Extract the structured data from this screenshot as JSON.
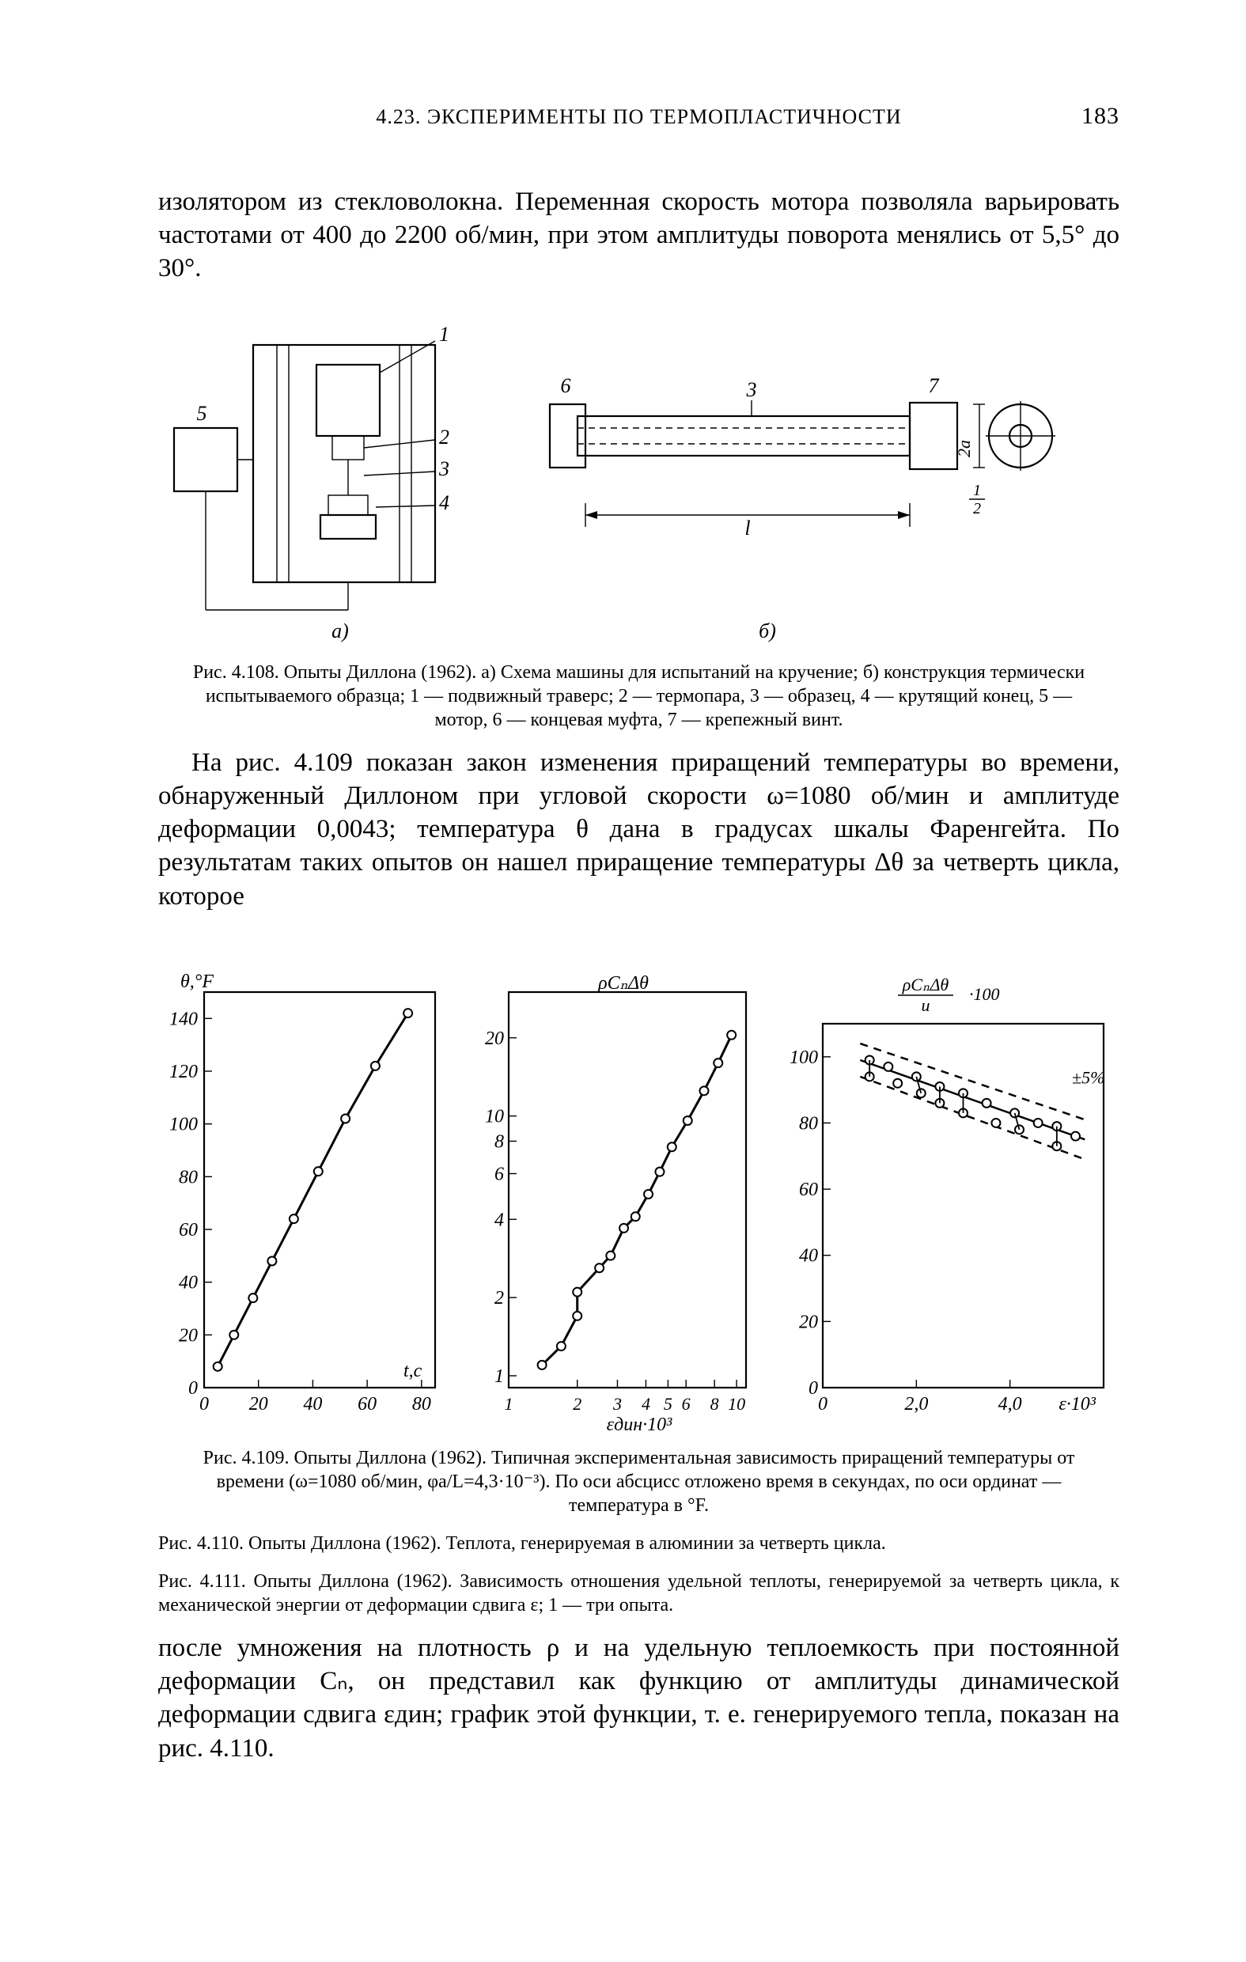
{
  "page": {
    "running_title": "4.23. ЭКСПЕРИМЕНТЫ ПО ТЕРМОПЛАСТИЧНОСТИ",
    "number": "183"
  },
  "para1": "изолятором из стекловолокна. Переменная скорость мотора позволяла варьировать частотами от 400 до 2200 об/мин, при этом амплитуды поворота менялись от 5,5° до 30°.",
  "fig108": {
    "caption": "Рис. 4.108. Опыты Диллона (1962). а) Схема машины для испытаний на кручение; б) конструкция термически испытываемого образца; 1 — подвижный траверс; 2 — термопара, 3 — образец, 4 — крутящий конец, 5 — мотор, 6 — концевая муфта, 7 — крепежный винт.",
    "labels": {
      "a": "а)",
      "b": "б)",
      "n1": "1",
      "n2": "2",
      "n3": "3",
      "n4": "4",
      "n5": "5",
      "n6": "6",
      "n7": "7",
      "L": "l",
      "d": "2а",
      "half": "1/2"
    }
  },
  "para2": "На рис. 4.109 показан закон изменения приращений температуры во времени, обнаруженный Диллоном при угловой скорости ω=1080 об/мин и амплитуде деформации 0,0043; температура θ дана в градусах шкалы Фаренгейта. По результатам таких опытов он нашел приращение температуры Δθ за четверть цикла, которое",
  "chart109": {
    "type": "scatter+line",
    "y_label": "θ,°F",
    "x_label": "t,с",
    "x_ticks": [
      "0",
      "20",
      "40",
      "60",
      "80"
    ],
    "y_ticks": [
      "0",
      "20",
      "40",
      "60",
      "80",
      "100",
      "120",
      "140"
    ],
    "xlim": [
      0,
      85
    ],
    "ylim": [
      0,
      150
    ],
    "line_color": "#000000",
    "point_color": "#000000",
    "background": "#ffffff",
    "points": [
      {
        "x": 5,
        "y": 8
      },
      {
        "x": 11,
        "y": 20
      },
      {
        "x": 18,
        "y": 34
      },
      {
        "x": 25,
        "y": 48
      },
      {
        "x": 33,
        "y": 64
      },
      {
        "x": 42,
        "y": 82
      },
      {
        "x": 52,
        "y": 102
      },
      {
        "x": 63,
        "y": 122
      },
      {
        "x": 75,
        "y": 142
      }
    ]
  },
  "chart110": {
    "type": "scatter+line",
    "title": "ρCₙΔθ",
    "x_label": "εдин·10³",
    "x_ticks": [
      "1",
      "2",
      "3",
      "4",
      "5",
      "6",
      "8",
      "10"
    ],
    "y_ticks": [
      "1",
      "2",
      "4",
      "6",
      "8",
      "10",
      "20"
    ],
    "xlim_log": [
      1,
      11
    ],
    "ylim_log": [
      0.9,
      30
    ],
    "line_color": "#000000",
    "point_color": "#000000",
    "background": "#ffffff",
    "points": [
      {
        "x": 1.4,
        "y": 1.1
      },
      {
        "x": 1.7,
        "y": 1.3
      },
      {
        "x": 2.0,
        "y": 1.7
      },
      {
        "x": 2.0,
        "y": 2.1
      },
      {
        "x": 2.5,
        "y": 2.6
      },
      {
        "x": 2.8,
        "y": 2.9
      },
      {
        "x": 3.2,
        "y": 3.7
      },
      {
        "x": 3.6,
        "y": 4.1
      },
      {
        "x": 4.1,
        "y": 5.0
      },
      {
        "x": 4.6,
        "y": 6.1
      },
      {
        "x": 5.2,
        "y": 7.6
      },
      {
        "x": 6.1,
        "y": 9.6
      },
      {
        "x": 7.2,
        "y": 12.5
      },
      {
        "x": 8.3,
        "y": 16.0
      },
      {
        "x": 9.5,
        "y": 20.5
      }
    ]
  },
  "chart111": {
    "type": "scatter+line",
    "title_top": "ρCₙΔθ",
    "title_bot": "u",
    "title_suffix": "·100",
    "annotation": "±5%",
    "x_label": "ε·10³",
    "x_ticks": [
      "0",
      "2,0",
      "4,0"
    ],
    "y_ticks": [
      "0",
      "20",
      "40",
      "60",
      "80",
      "100"
    ],
    "xlim": [
      0,
      6.0
    ],
    "ylim": [
      0,
      110
    ],
    "line_color": "#000000",
    "point_color": "#000000",
    "background": "#ffffff",
    "center_line": [
      {
        "x": 0.8,
        "y": 99
      },
      {
        "x": 5.6,
        "y": 75
      }
    ],
    "upper_line": [
      {
        "x": 0.8,
        "y": 104
      },
      {
        "x": 5.6,
        "y": 81
      }
    ],
    "lower_line": [
      {
        "x": 0.8,
        "y": 94
      },
      {
        "x": 5.6,
        "y": 69
      }
    ],
    "points": [
      {
        "x": 1.0,
        "y": 99
      },
      {
        "x": 1.0,
        "y": 94
      },
      {
        "x": 1.4,
        "y": 97
      },
      {
        "x": 1.6,
        "y": 92
      },
      {
        "x": 2.0,
        "y": 94
      },
      {
        "x": 2.1,
        "y": 89
      },
      {
        "x": 2.5,
        "y": 91
      },
      {
        "x": 2.5,
        "y": 86
      },
      {
        "x": 3.0,
        "y": 89
      },
      {
        "x": 3.0,
        "y": 83
      },
      {
        "x": 3.5,
        "y": 86
      },
      {
        "x": 3.7,
        "y": 80
      },
      {
        "x": 4.1,
        "y": 83
      },
      {
        "x": 4.2,
        "y": 78
      },
      {
        "x": 4.6,
        "y": 80
      },
      {
        "x": 5.0,
        "y": 79
      },
      {
        "x": 5.0,
        "y": 73
      },
      {
        "x": 5.4,
        "y": 76
      }
    ]
  },
  "caption109": "Рис. 4.109. Опыты Диллона (1962). Типичная экспериментальная зависимость приращений температуры от времени (ω=1080 об/мин, φа/L=4,3·10⁻³). По оси абсцисс отложено время в секундах, по оси ординат — температура в °F.",
  "caption110": "Рис. 4.110. Опыты Диллона (1962).  Теплота, генерируемая в алюминии за четверть цикла.",
  "caption111": "Рис. 4.111. Опыты Диллона (1962). Зависимость отношения удельной теплоты, генерируемой за четверть цикла, к механической энергии от деформации сдвига ε;  1 — три опыта.",
  "para3": "после умножения на плотность ρ и на удельную теплоемкость при постоянной деформации Cₙ, он представил как функцию от амплитуды динамической деформации сдвига εдин; график этой функции, т. е. генерируемого тепла, показан на рис. 4.110.",
  "style": {
    "stroke": "#000000",
    "stroke_width": 2.2,
    "thin_stroke": 1.4,
    "font_axis": 24,
    "font_axis_small": 22
  }
}
